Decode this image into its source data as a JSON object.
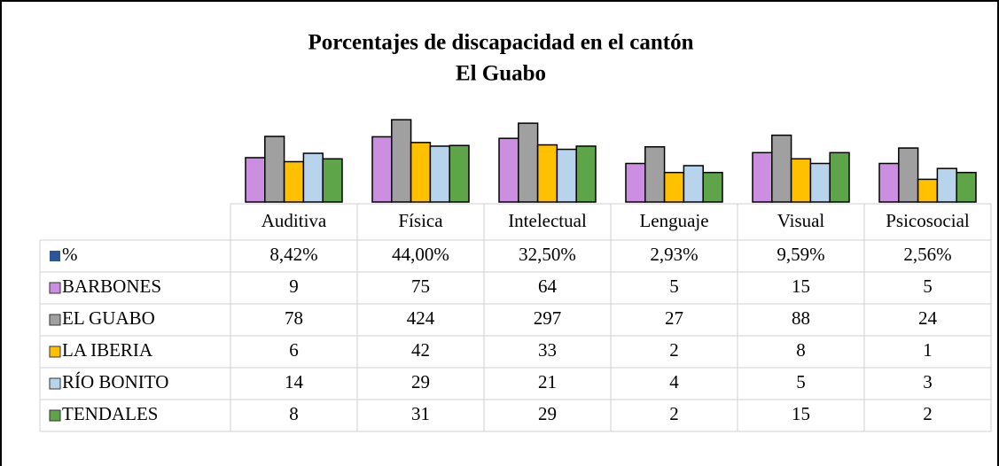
{
  "chart_data": {
    "type": "bar",
    "title": [
      "Porcentajes de discapacidad en el cantón",
      "El Guabo"
    ],
    "categories": [
      "Auditiva",
      "Física",
      "Intelectual",
      "Lenguaje",
      "Visual",
      "Psicosocial"
    ],
    "log_scale": true,
    "ylim": [
      0.1,
      1000
    ],
    "percent": {
      "name": "%",
      "color": "#2e5597",
      "values": [
        8.42,
        44.0,
        32.5,
        2.93,
        9.59,
        2.56
      ],
      "value_labels": [
        "8,42%",
        "44,00%",
        "32,50%",
        "2,93%",
        "9,59%",
        "2,56%"
      ]
    },
    "series": [
      {
        "name": "BARBONES",
        "color": "#cc8ee0",
        "values": [
          9,
          75,
          64,
          5,
          15,
          5
        ]
      },
      {
        "name": "EL GUABO",
        "color": "#a0a0a0",
        "values": [
          78,
          424,
          297,
          27,
          88,
          24
        ]
      },
      {
        "name": "LA IBERIA",
        "color": "#ffc000",
        "values": [
          6,
          42,
          33,
          2,
          8,
          1
        ]
      },
      {
        "name": "RÍO BONITO",
        "color": "#b8d4ec",
        "values": [
          14,
          29,
          21,
          4,
          5,
          3
        ]
      },
      {
        "name": "TENDALES",
        "color": "#5ea54a",
        "values": [
          8,
          31,
          29,
          2,
          15,
          2
        ]
      }
    ]
  }
}
